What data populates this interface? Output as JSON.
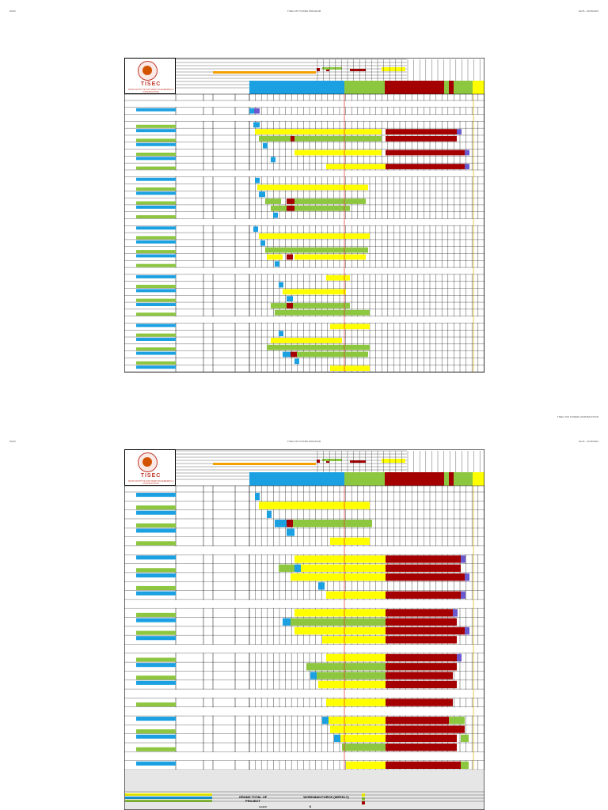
{
  "pages": [
    {
      "header": {
        "left": "20/09",
        "center": "TISEC MS TOWER PROGRAM",
        "right": "Ref B  -  01/05/2003"
      },
      "footer": "TISEC TAS TOWER CONSTRUCTION",
      "logo": {
        "word": "TISEC",
        "sub": "TEXAS INSTITUTE FOR SMART ENGINEERING & CONSTRUCTION"
      }
    },
    {
      "header": {
        "left": "20/09",
        "center": "TISEC MS TOWER PROGRAM",
        "right": "Ref B  -  01/05/2003"
      },
      "footer": "",
      "logo": {
        "word": "TISEC",
        "sub": "TEXAS INSTITUTE FOR SMART ENGINEERING & CONSTRUCTION"
      }
    }
  ],
  "summary": {
    "grand_total": "GRAND TOTAL OF PROJECT",
    "workforce": "WORKMAN FORCE (WEEKLY)",
    "small_label": "LEGEND",
    "value": "6"
  },
  "colors": {
    "blue": "#1ba1e2",
    "green": "#8dc63f",
    "yellow": "#ffff00",
    "darkred": "#a50000",
    "orange": "#f5a000",
    "purple": "#6a5acd",
    "gray": "#d9d9d9",
    "milestone": "#e03030"
  }
}
